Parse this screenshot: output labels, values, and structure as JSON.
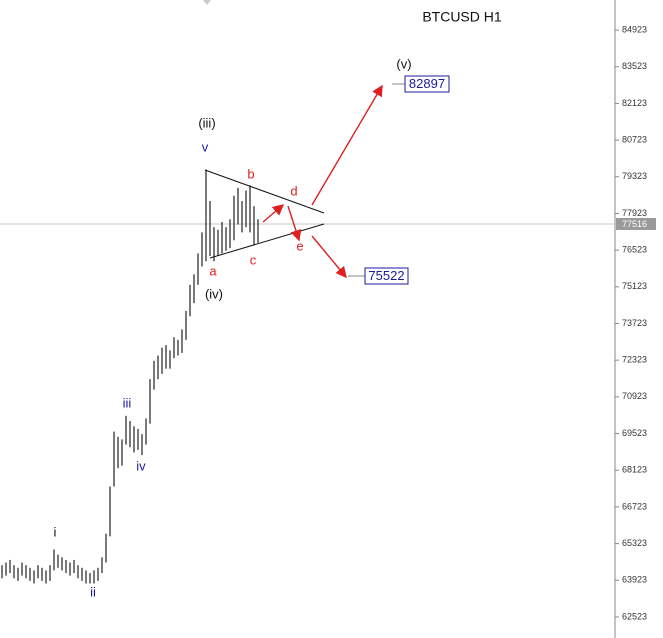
{
  "chart_data": {
    "type": "ohlc",
    "title": "BTCUSD H1",
    "ylim": [
      61720,
      86070
    ],
    "yticks": [
      62523,
      63923,
      65323,
      66723,
      68123,
      69523,
      70923,
      72323,
      73723,
      75123,
      76523,
      77923,
      79323,
      80723,
      82123,
      83523,
      84923
    ],
    "color": "#222222",
    "series": [
      {
        "name": "high",
        "values": [
          64500,
          64600,
          64700,
          64500,
          64400,
          64600,
          64500,
          64400,
          64300,
          64500,
          64400,
          64300,
          64500,
          65100,
          64900,
          64800,
          64700,
          64600,
          64700,
          64500,
          64400,
          64300,
          64200,
          64300,
          64400,
          64800,
          65700,
          67500,
          69600,
          69400,
          69300,
          70200,
          70000,
          69800,
          69700,
          69500,
          70100,
          71600,
          72300,
          72500,
          72800,
          72900,
          72700,
          73200,
          73100,
          73500,
          74200,
          75200,
          75600,
          76400,
          77200,
          79600,
          78400,
          77400,
          77300,
          77600,
          77400,
          77700,
          78600,
          78900,
          78400,
          78800,
          79000,
          78200,
          77700
        ]
      },
      {
        "name": "low",
        "values": [
          64000,
          64100,
          64200,
          64000,
          63900,
          64100,
          64000,
          63900,
          63800,
          64000,
          63900,
          63800,
          63900,
          64300,
          64400,
          64300,
          64200,
          64100,
          64200,
          64000,
          63900,
          63800,
          63800,
          63800,
          63900,
          64200,
          64600,
          65600,
          67500,
          68200,
          68300,
          69100,
          69000,
          68800,
          68900,
          68700,
          69100,
          69900,
          71200,
          71600,
          71800,
          72000,
          72000,
          72400,
          72500,
          72600,
          73100,
          74000,
          74500,
          75200,
          75900,
          76100,
          76300,
          76100,
          76300,
          76400,
          76500,
          76600,
          76900,
          77500,
          77200,
          77400,
          77200,
          76700,
          76800
        ]
      }
    ],
    "current_price": "77516",
    "annotations": {
      "wave_v": "(v)",
      "target_up": "82897",
      "wave_iii_major": "(iii)",
      "wave_v_minor": "v",
      "b": "b",
      "d": "d",
      "wave_iv_major": "(iv)",
      "a": "a",
      "c": "c",
      "e": "e",
      "target_down": "75522",
      "wave_iii_minor": "iii",
      "wave_iv_minor": "iv",
      "wave_i": "i",
      "wave_ii": "ii"
    }
  }
}
